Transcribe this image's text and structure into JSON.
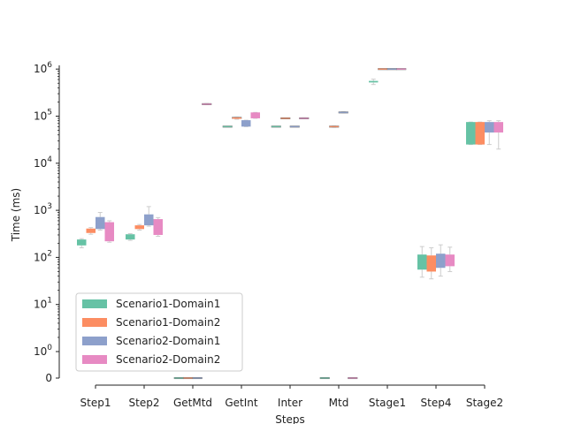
{
  "chart_data": {
    "type": "box",
    "xlabel": "Steps",
    "ylabel": "Time (ms)",
    "y_scale": "symlog",
    "y_tick_labels": [
      "0",
      "10^0",
      "10^1",
      "10^2",
      "10^3",
      "10^4",
      "10^5",
      "10^6"
    ],
    "categories": [
      "Step1",
      "Step2",
      "GetMtd",
      "GetInt",
      "Inter",
      "Mtd",
      "Stage1",
      "Step4",
      "Stage2"
    ],
    "legend_position": "lower-left",
    "series": [
      {
        "name": "Scenario1-Domain1",
        "color": "#66c2a5",
        "boxes": [
          {
            "q1": 180,
            "median": 205,
            "q3": 240,
            "whislo": 160,
            "whishi": 250
          },
          {
            "q1": 240,
            "median": 270,
            "q3": 310,
            "whislo": 230,
            "whishi": 320
          },
          {
            "q1": 0,
            "median": 0,
            "q3": 0,
            "whislo": 0,
            "whishi": 0
          },
          {
            "q1": 60000,
            "median": 60000,
            "q3": 60000,
            "whislo": 60000,
            "whishi": 60000
          },
          {
            "q1": 60000,
            "median": 60000,
            "q3": 60000,
            "whislo": 60000,
            "whishi": 60000
          },
          {
            "q1": 0,
            "median": 0,
            "q3": 0,
            "whislo": 0,
            "whishi": 0
          },
          {
            "q1": 520000,
            "median": 540000,
            "q3": 560000,
            "whislo": 470000,
            "whishi": 610000
          },
          {
            "q1": 55,
            "median": 80,
            "q3": 115,
            "whislo": 38,
            "whishi": 170
          },
          {
            "q1": 25000,
            "median": 45000,
            "q3": 75000,
            "whislo": 25000,
            "whishi": 75000
          }
        ]
      },
      {
        "name": "Scenario1-Domain2",
        "color": "#fc8d62",
        "boxes": [
          {
            "q1": 330,
            "median": 370,
            "q3": 410,
            "whislo": 310,
            "whishi": 430
          },
          {
            "q1": 400,
            "median": 430,
            "q3": 480,
            "whislo": 380,
            "whishi": 500
          },
          {
            "q1": 0,
            "median": 0,
            "q3": 0,
            "whislo": 0,
            "whishi": 0
          },
          {
            "q1": 88000,
            "median": 90000,
            "q3": 92000,
            "whislo": 86000,
            "whishi": 95000
          },
          {
            "q1": 90000,
            "median": 90000,
            "q3": 90000,
            "whislo": 90000,
            "whishi": 90000
          },
          {
            "q1": 60000,
            "median": 60000,
            "q3": 60000,
            "whislo": 58000,
            "whishi": 62000
          },
          {
            "q1": 1000000,
            "median": 1000000,
            "q3": 1000000,
            "whislo": 1000000,
            "whishi": 1000000
          },
          {
            "q1": 50,
            "median": 75,
            "q3": 110,
            "whislo": 35,
            "whishi": 160
          },
          {
            "q1": 25000,
            "median": 45000,
            "q3": 75000,
            "whislo": 25000,
            "whishi": 75000
          }
        ]
      },
      {
        "name": "Scenario2-Domain1",
        "color": "#8da0cb",
        "boxes": [
          {
            "q1": 400,
            "median": 520,
            "q3": 720,
            "whislo": 380,
            "whishi": 900
          },
          {
            "q1": 480,
            "median": 620,
            "q3": 820,
            "whislo": 460,
            "whishi": 1200
          },
          {
            "q1": 0,
            "median": 0,
            "q3": 0,
            "whislo": 0,
            "whishi": 0
          },
          {
            "q1": 60000,
            "median": 70000,
            "q3": 82000,
            "whislo": 60000,
            "whishi": 82000
          },
          {
            "q1": 60000,
            "median": 60000,
            "q3": 60000,
            "whislo": 60000,
            "whishi": 60000
          },
          {
            "q1": 120000,
            "median": 120000,
            "q3": 120000,
            "whislo": 118000,
            "whishi": 125000
          },
          {
            "q1": 1000000,
            "median": 1000000,
            "q3": 1000000,
            "whislo": 1000000,
            "whishi": 1000000
          },
          {
            "q1": 60,
            "median": 85,
            "q3": 120,
            "whislo": 40,
            "whishi": 185
          },
          {
            "q1": 45000,
            "median": 60000,
            "q3": 75000,
            "whislo": 25000,
            "whishi": 80000
          }
        ]
      },
      {
        "name": "Scenario2-Domain2",
        "color": "#e78ac3",
        "boxes": [
          {
            "q1": 220,
            "median": 330,
            "q3": 560,
            "whislo": 210,
            "whishi": 600
          },
          {
            "q1": 300,
            "median": 420,
            "q3": 650,
            "whislo": 280,
            "whishi": 700
          },
          {
            "q1": 180000,
            "median": 180000,
            "q3": 180000,
            "whislo": 175000,
            "whishi": 185000
          },
          {
            "q1": 90000,
            "median": 100000,
            "q3": 120000,
            "whislo": 90000,
            "whishi": 120000
          },
          {
            "q1": 90000,
            "median": 90000,
            "q3": 90000,
            "whislo": 88000,
            "whishi": 92000
          },
          {
            "q1": 0,
            "median": 0,
            "q3": 0,
            "whislo": 0,
            "whishi": 0
          },
          {
            "q1": 1000000,
            "median": 1000000,
            "q3": 1000000,
            "whislo": 1000000,
            "whishi": 1000000
          },
          {
            "q1": 65,
            "median": 90,
            "q3": 115,
            "whislo": 50,
            "whishi": 165
          },
          {
            "q1": 45000,
            "median": 60000,
            "q3": 75000,
            "whislo": 20000,
            "whishi": 80000
          }
        ]
      }
    ]
  }
}
